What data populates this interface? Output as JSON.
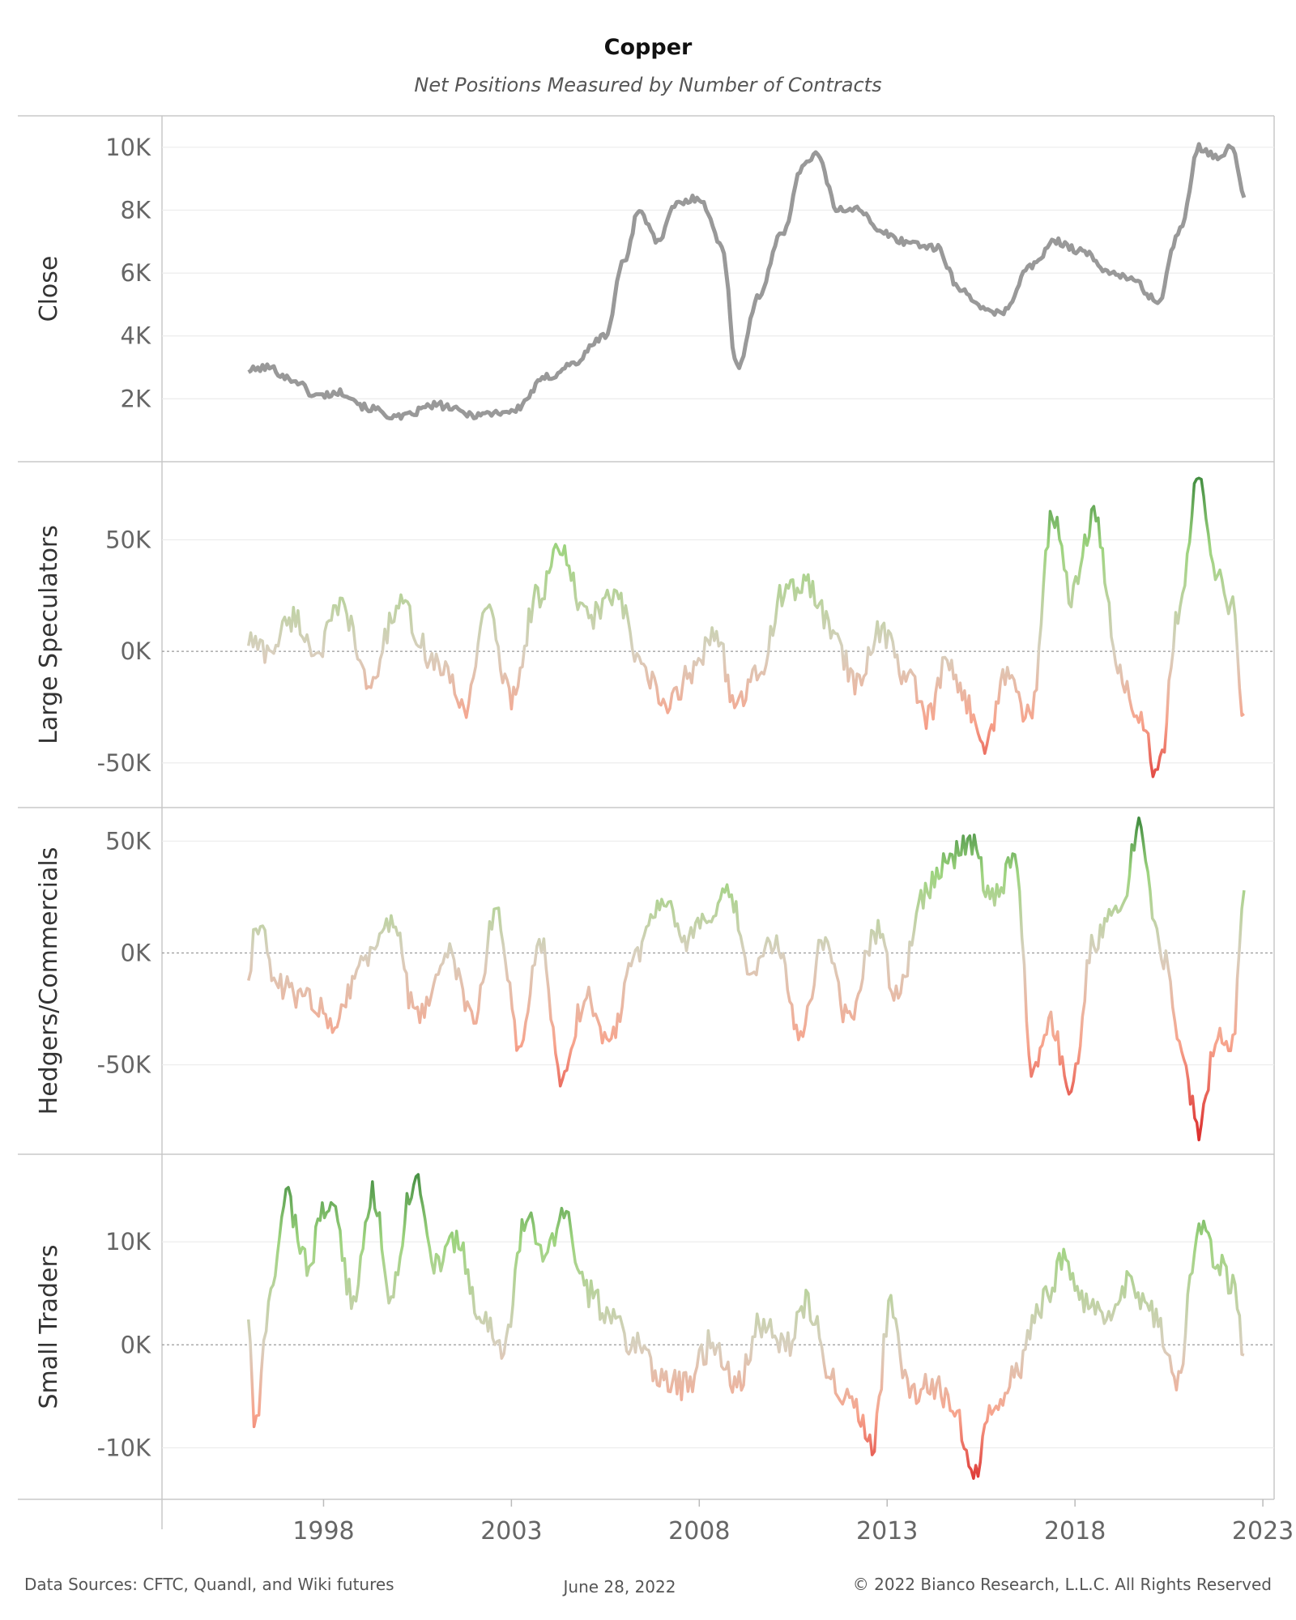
{
  "title": "Copper",
  "subtitle": "Net Positions Measured by Number of Contracts",
  "footer": {
    "left": "Data Sources: CFTC, Quandl, and Wiki futures",
    "center": "June 28, 2022",
    "right": "© 2022 Bianco Research, L.L.C. All Rights Reserved"
  },
  "colors": {
    "close": "#999999",
    "dark_green": "#2e7d32",
    "light_green": "#9ed47f",
    "neutral": "#d8d0bf",
    "light_red": "#f7a48d",
    "dark_red": "#d7191c"
  },
  "chart_data": [
    {
      "type": "line",
      "name": "close",
      "ylabel": "Close",
      "ylim": [
        0,
        11000
      ],
      "yticks": [
        2000,
        4000,
        6000,
        8000,
        10000
      ],
      "ytick_labels": [
        "2K",
        "4K",
        "6K",
        "8K",
        "10K"
      ],
      "xlim": [
        1993.7,
        2023.3
      ],
      "x": [
        1996.0,
        1996.5,
        1997.2,
        1997.8,
        1998.5,
        1999.2,
        2000.0,
        2001.0,
        2002.0,
        2003.0,
        2004.0,
        2004.6,
        2005.5,
        2006.0,
        2006.4,
        2006.9,
        2007.4,
        2008.0,
        2008.6,
        2009.0,
        2009.6,
        2010.2,
        2010.8,
        2011.1,
        2011.7,
        2012.2,
        2012.8,
        2013.5,
        2014.3,
        2015.0,
        2015.8,
        2016.1,
        2016.8,
        2017.5,
        2018.2,
        2018.8,
        2019.5,
        2020.2,
        2020.8,
        2021.3,
        2021.8,
        2022.2,
        2022.5
      ],
      "y": [
        2900,
        3000,
        2600,
        2100,
        2200,
        1700,
        1400,
        1800,
        1500,
        1600,
        2700,
        3100,
        4000,
        6400,
        8000,
        7000,
        8200,
        8400,
        6900,
        3000,
        5300,
        7300,
        9500,
        9800,
        8000,
        8100,
        7300,
        7000,
        6800,
        5400,
        4700,
        4800,
        6200,
        7000,
        6700,
        6100,
        5800,
        5100,
        7400,
        10000,
        9700,
        10000,
        8400
      ]
    },
    {
      "type": "line",
      "name": "large_speculators",
      "ylabel": "Large Speculators",
      "ylim": [
        -70000,
        85000
      ],
      "yticks": [
        -50000,
        0,
        50000
      ],
      "ytick_labels": [
        "-50K",
        "0K",
        "50K"
      ],
      "xlim": [
        1993.7,
        2023.3
      ],
      "x": [
        1996.0,
        1996.5,
        1997.2,
        1997.8,
        1998.5,
        1999.2,
        2000.0,
        2001.0,
        2001.8,
        2002.3,
        2003.0,
        2003.7,
        2004.3,
        2005.0,
        2005.8,
        2006.4,
        2007.1,
        2007.8,
        2008.4,
        2009.0,
        2009.6,
        2010.2,
        2010.9,
        2011.5,
        2012.2,
        2012.8,
        2013.5,
        2014.1,
        2014.6,
        2015.0,
        2015.6,
        2016.2,
        2016.8,
        2017.4,
        2017.9,
        2018.5,
        2019.2,
        2019.7,
        2020.2,
        2020.8,
        2021.3,
        2021.8,
        2022.2,
        2022.5
      ],
      "y": [
        5000,
        0,
        15000,
        0,
        20000,
        -15000,
        20000,
        -5000,
        -25000,
        20000,
        -20000,
        25000,
        45000,
        15000,
        25000,
        -5000,
        -25000,
        -10000,
        10000,
        -25000,
        -10000,
        25000,
        30000,
        10000,
        -15000,
        10000,
        -10000,
        -30000,
        -5000,
        -20000,
        -40000,
        -10000,
        -30000,
        60000,
        25000,
        60000,
        -10000,
        -30000,
        -55000,
        20000,
        78000,
        35000,
        20000,
        -28000
      ]
    },
    {
      "type": "line",
      "name": "hedgers_commercials",
      "ylabel": "Hedgers/Commercials",
      "ylim": [
        -90000,
        65000
      ],
      "yticks": [
        -50000,
        0,
        50000
      ],
      "ytick_labels": [
        "-50K",
        "0K",
        "50K"
      ],
      "xlim": [
        1993.7,
        2023.3
      ],
      "x": [
        1996.0,
        1996.2,
        1996.8,
        1997.5,
        1998.3,
        1999.0,
        1999.8,
        2000.5,
        2001.3,
        2002.0,
        2002.6,
        2003.2,
        2003.8,
        2004.3,
        2005.0,
        2005.6,
        2006.3,
        2007.0,
        2007.6,
        2008.2,
        2008.8,
        2009.4,
        2010.0,
        2010.7,
        2011.3,
        2012.0,
        2012.7,
        2013.3,
        2013.9,
        2014.5,
        2015.2,
        2015.8,
        2016.4,
        2016.9,
        2017.3,
        2017.9,
        2018.5,
        2019.2,
        2019.7,
        2020.3,
        2020.9,
        2021.3,
        2021.8,
        2022.2,
        2022.5
      ],
      "y": [
        -10000,
        15000,
        -15000,
        -20000,
        -30000,
        -5000,
        15000,
        -30000,
        0,
        -30000,
        20000,
        -40000,
        5000,
        -55000,
        -20000,
        -40000,
        0,
        25000,
        5000,
        15000,
        25000,
        -10000,
        5000,
        -35000,
        5000,
        -30000,
        10000,
        -20000,
        25000,
        40000,
        50000,
        25000,
        40000,
        -55000,
        -30000,
        -60000,
        5000,
        20000,
        55000,
        0,
        -50000,
        -80000,
        -35000,
        -40000,
        28000
      ]
    },
    {
      "type": "line",
      "name": "small_traders",
      "ylabel": "Small Traders",
      "ylim": [
        -15000,
        18500
      ],
      "yticks": [
        -10000,
        0,
        10000
      ],
      "ytick_labels": [
        "-10K",
        "0K",
        "10K"
      ],
      "xlim": [
        1993.7,
        2023.3
      ],
      "x": [
        1996.0,
        1996.15,
        1996.6,
        1997.0,
        1997.5,
        1998.2,
        1998.8,
        1999.3,
        1999.8,
        2000.4,
        2001.0,
        2001.6,
        2002.2,
        2002.8,
        2003.4,
        2003.9,
        2004.4,
        2005.0,
        2005.6,
        2006.3,
        2007.0,
        2007.7,
        2008.3,
        2009.0,
        2009.6,
        2010.3,
        2010.9,
        2011.5,
        2012.0,
        2012.6,
        2013.1,
        2013.6,
        2014.2,
        2014.8,
        2015.3,
        2015.9,
        2016.5,
        2017.1,
        2017.7,
        2018.3,
        2018.9,
        2019.5,
        2020.1,
        2020.7,
        2021.3,
        2021.8,
        2022.2,
        2022.5
      ],
      "y": [
        3000,
        -8000,
        4000,
        15000,
        8000,
        14000,
        4000,
        15000,
        5000,
        16000,
        8000,
        10000,
        2000,
        0,
        12000,
        9000,
        13000,
        5000,
        3000,
        0,
        -3000,
        -4000,
        0,
        -4000,
        2000,
        0,
        4000,
        -3000,
        -5000,
        -10000,
        4000,
        -5000,
        -4000,
        -6000,
        -12000,
        -5000,
        -2000,
        4000,
        8000,
        4000,
        2000,
        6000,
        3000,
        -4000,
        11000,
        8000,
        6000,
        -1000
      ]
    }
  ],
  "x_axis": {
    "ticks": [
      1998,
      2003,
      2008,
      2013,
      2018,
      2023
    ],
    "tick_labels": [
      "1998",
      "2003",
      "2008",
      "2013",
      "2018",
      "2023"
    ]
  }
}
